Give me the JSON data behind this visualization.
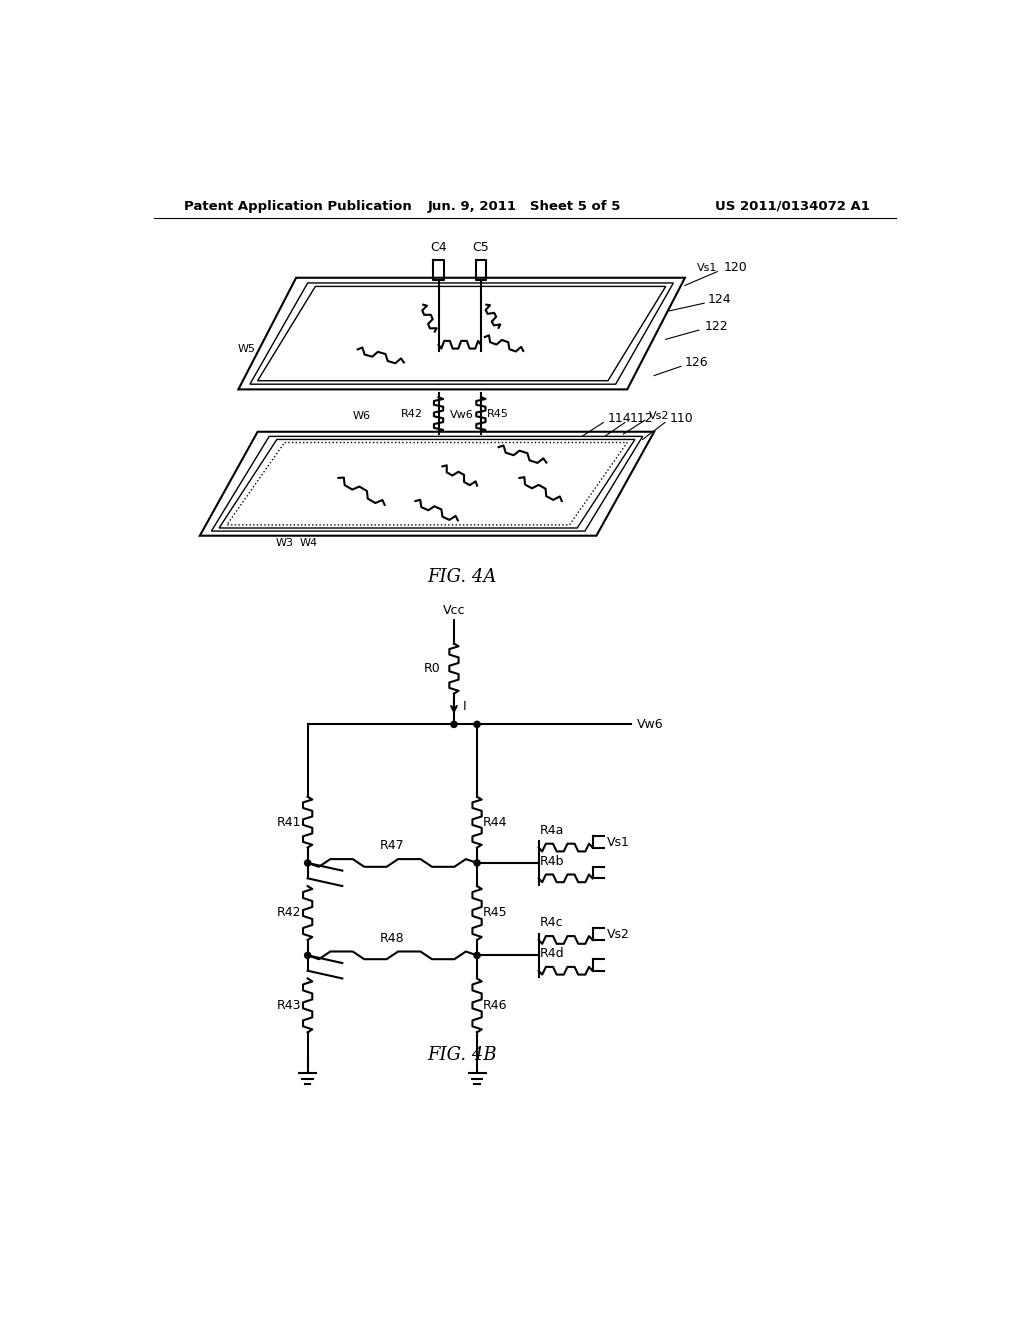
{
  "bg_color": "#ffffff",
  "header_left": "Patent Application Publication",
  "header_center": "Jun. 9, 2011   Sheet 5 of 5",
  "header_right": "US 2011/0134072 A1",
  "fig4a_label": "FIG. 4A",
  "fig4b_label": "FIG. 4B"
}
